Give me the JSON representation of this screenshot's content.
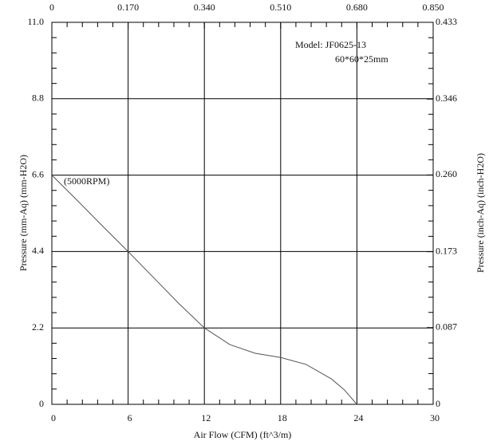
{
  "chart_data": {
    "type": "line",
    "x_label": "Air Flow (CFM) (ft^3/m)",
    "y_label": "Pressure (mm-Aq) (mm-H2O)",
    "y2_label": "Pressure (inch-Aq) (inch-H2O)",
    "annotations": [
      "Model:  JF0625-13",
      "60*60*25mm",
      "(5000RPM)"
    ],
    "x": [
      0,
      2,
      4,
      6,
      8,
      10,
      12,
      14,
      16,
      18,
      20,
      22,
      23,
      24
    ],
    "series": [
      {
        "color": "#555555",
        "values": [
          6.6,
          5.87,
          5.13,
          4.4,
          3.65,
          2.9,
          2.2,
          1.72,
          1.47,
          1.35,
          1.15,
          0.73,
          0.42,
          0
        ]
      }
    ],
    "xlim": [
      0,
      30
    ],
    "xticks": [
      0,
      6,
      12,
      18,
      24,
      30
    ],
    "x2lim": [
      0,
      0.85
    ],
    "x2ticks": [
      0,
      {
        "value": 0.17,
        "label": "0.170"
      },
      {
        "value": 0.34,
        "label": "0.340"
      },
      {
        "value": 0.51,
        "label": "0.510"
      },
      {
        "value": 0.68,
        "label": "0.680"
      },
      {
        "value": 0.85,
        "label": "0.850"
      }
    ],
    "ylim": [
      0,
      11
    ],
    "yticks": [
      0,
      2.2,
      4.4,
      6.6,
      8.8,
      {
        "value": 11,
        "label": "11.0"
      }
    ],
    "y2lim": [
      0,
      0.433
    ],
    "y2ticks": [
      0,
      0.087,
      0.173,
      {
        "value": 0.26,
        "label": "0.260"
      },
      0.346,
      0.433
    ],
    "grid": true
  }
}
